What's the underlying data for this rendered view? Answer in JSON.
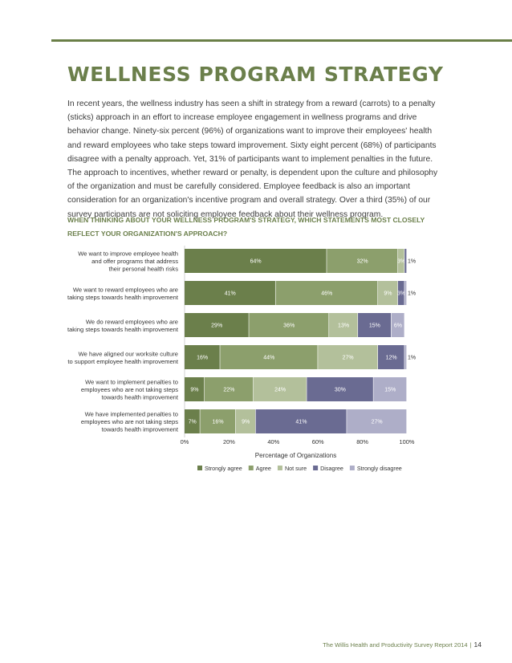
{
  "page_title": "WELLNESS PROGRAM STRATEGY",
  "intro_paragraph": "In recent years, the wellness industry has seen a shift in strategy from a reward (carrots) to a penalty (sticks) approach in an effort to increase employee engagement in wellness programs and drive behavior change. Ninety-six percent (96%) of organizations want to improve their employees' health and reward employees who take steps toward improvement. Sixty eight percent (68%) of participants disagree with a penalty approach. Yet, 31% of participants want to implement penalties in the future. The approach to incentives, whether reward or penalty, is dependent upon the culture and philosophy of the organization and must be carefully considered. Employee feedback is also an important consideration for an organization's incentive program and overall strategy. Over a third (35%) of our survey participants are not soliciting employee feedback about their wellness program.",
  "question": "WHEN THINKING ABOUT YOUR WELLNESS PROGRAM'S STRATEGY, WHICH STATEMENTS MOST CLOSELY REFLECT YOUR ORGANIZATION'S APPROACH?",
  "footer": {
    "report": "The Willis Health and Productivity Survey Report 2014",
    "separator": "|",
    "page": "14"
  },
  "chart_data": {
    "type": "bar",
    "orientation": "horizontal",
    "stacked": true,
    "xlabel": "Percentage of Organizations",
    "xlim": [
      0,
      100
    ],
    "x_ticks": [
      "0%",
      "20%",
      "40%",
      "60%",
      "80%",
      "100%"
    ],
    "legend_position": "bottom",
    "categories": [
      [
        "We want to improve employee health",
        "and offer programs that address",
        "their personal health risks"
      ],
      [
        "We want to reward employees who are",
        "taking steps towards health improvement"
      ],
      [
        "We do reward employees who are",
        "taking steps towards health improvement"
      ],
      [
        "We have aligned our worksite culture",
        "to support employee health improvement"
      ],
      [
        "We want to implement penalties to",
        "employees who are not taking steps",
        "towards health improvement"
      ],
      [
        "We have implemented penalties to",
        "employees who are not taking steps",
        "towards health improvement"
      ]
    ],
    "series": [
      {
        "name": "Strongly agree",
        "color": "#6b7f4b",
        "values": [
          64,
          41,
          29,
          16,
          9,
          7
        ]
      },
      {
        "name": "Agree",
        "color": "#8c9f6c",
        "values": [
          32,
          46,
          36,
          44,
          22,
          16
        ]
      },
      {
        "name": "Not sure",
        "color": "#b3c09b",
        "values": [
          3,
          9,
          13,
          27,
          24,
          9
        ]
      },
      {
        "name": "Disagree",
        "color": "#6a6b92",
        "values": [
          1,
          3,
          15,
          12,
          30,
          41
        ]
      },
      {
        "name": "Strongly disagree",
        "color": "#aeaec8",
        "values": [
          0,
          1,
          6,
          1,
          15,
          27
        ]
      }
    ],
    "value_labels": [
      [
        "64%",
        "32%",
        "3%",
        "1%",
        ""
      ],
      [
        "41%",
        "46%",
        "9%",
        "3%",
        "1%"
      ],
      [
        "29%",
        "36%",
        "13%",
        "15%",
        "6%"
      ],
      [
        "16%",
        "44%",
        "27%",
        "12%",
        "1%"
      ],
      [
        "9%",
        "22%",
        "24%",
        "30%",
        "15%"
      ],
      [
        "7%",
        "16%",
        "9%",
        "41%",
        "27%"
      ]
    ]
  }
}
